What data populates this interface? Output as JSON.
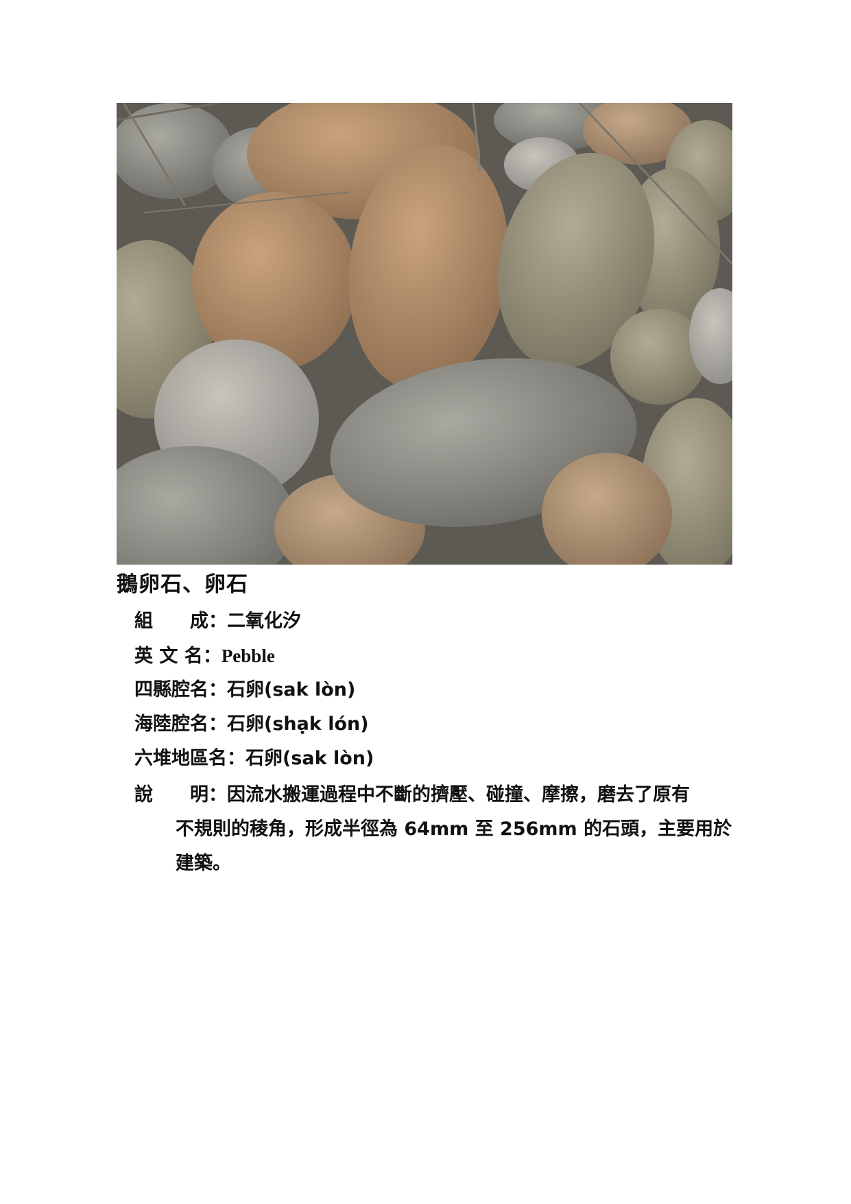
{
  "title": "鵝卵石、卵石",
  "fields": [
    {
      "label": "組　　成",
      "value": "二氧化汐"
    },
    {
      "label": "英 文 名",
      "value": "Pebble"
    },
    {
      "label": "四縣腔名",
      "value": "石卵(sak lòn)"
    },
    {
      "label": "海陸腔名",
      "value": "石卵(shạk lón)"
    },
    {
      "label": "六堆地區名",
      "value": "石卵(sak lòn)"
    }
  ],
  "description": {
    "label": "說　　明",
    "line1": "因流水搬運過程中不斷的擠壓、碰撞、摩擦，磨去了原有",
    "line2": "不規則的稜角，形成半徑為 64mm 至 256mm 的石頭，主要用於",
    "line3": "建築。"
  },
  "colors": {
    "photo_bg": "#8d877c",
    "text": "#111111"
  }
}
